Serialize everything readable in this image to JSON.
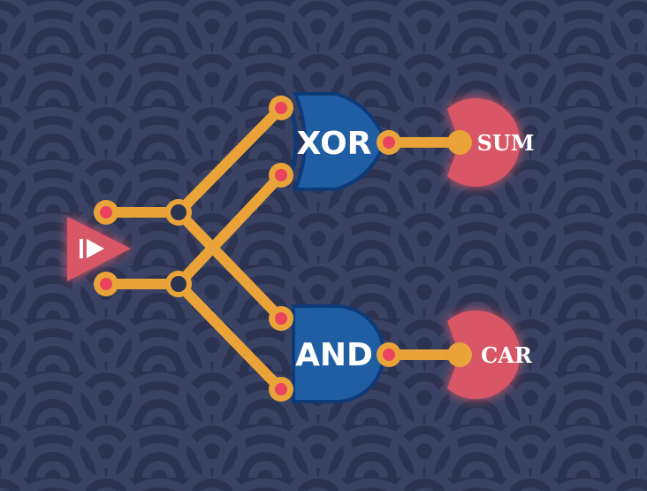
{
  "gates": {
    "xor": {
      "label": "XOR",
      "fill": "#1f5ea3"
    },
    "and": {
      "label": "AND",
      "fill": "#1f5ea3"
    }
  },
  "outputs": {
    "sum": {
      "label": "SUM",
      "fill": "#d85766"
    },
    "carry": {
      "label": "CAR",
      "fill": "#d85766"
    }
  },
  "colors": {
    "background": "#2c3350",
    "wave_pattern": "#3a4263",
    "wire": "#e9a338",
    "pin": "#e9435d",
    "gate_outline": "#0f3a7a",
    "player": "#d85766"
  },
  "icons": {
    "player": "play-triangle-icon"
  }
}
